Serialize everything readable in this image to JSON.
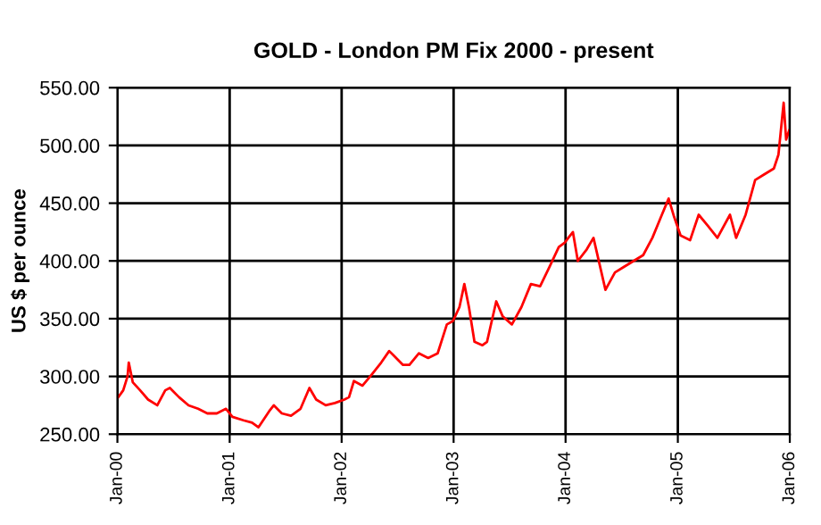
{
  "chart_data": {
    "type": "line",
    "title": "GOLD - London PM Fix 2000 - present",
    "ylabel": "US $ per ounce",
    "x": [
      "2000-01-04",
      "2000-01-20",
      "2000-02-03",
      "2000-02-07",
      "2000-02-20",
      "2000-03-15",
      "2000-04-10",
      "2000-05-10",
      "2000-06-05",
      "2000-06-20",
      "2000-07-20",
      "2000-08-20",
      "2000-09-20",
      "2000-10-20",
      "2000-11-20",
      "2000-12-20",
      "2001-01-10",
      "2001-02-15",
      "2001-03-15",
      "2001-04-05",
      "2001-05-10",
      "2001-05-25",
      "2001-06-20",
      "2001-07-20",
      "2001-08-20",
      "2001-09-18",
      "2001-10-10",
      "2001-11-10",
      "2001-12-10",
      "2002-01-10",
      "2002-01-25",
      "2002-02-10",
      "2002-03-10",
      "2002-04-10",
      "2002-05-10",
      "2002-06-05",
      "2002-06-20",
      "2002-07-20",
      "2002-08-10",
      "2002-09-10",
      "2002-10-10",
      "2002-11-10",
      "2002-12-10",
      "2002-12-30",
      "2003-01-20",
      "2003-02-05",
      "2003-02-20",
      "2003-03-10",
      "2003-04-05",
      "2003-04-20",
      "2003-05-20",
      "2003-06-10",
      "2003-07-10",
      "2003-08-10",
      "2003-09-10",
      "2003-10-10",
      "2003-11-10",
      "2003-12-10",
      "2003-12-30",
      "2004-01-10",
      "2004-01-25",
      "2004-02-10",
      "2004-03-10",
      "2004-04-01",
      "2004-05-10",
      "2004-06-10",
      "2004-07-10",
      "2004-08-10",
      "2004-09-10",
      "2004-10-10",
      "2004-11-10",
      "2004-12-02",
      "2004-12-20",
      "2005-01-10",
      "2005-02-10",
      "2005-03-10",
      "2005-04-10",
      "2005-05-10",
      "2005-06-20",
      "2005-07-10",
      "2005-08-10",
      "2005-09-10",
      "2005-10-10",
      "2005-11-10",
      "2005-11-25",
      "2005-12-12",
      "2005-12-20",
      "2005-12-30"
    ],
    "series": [
      {
        "color": "#ff0000",
        "values": [
          282,
          288,
          300,
          312,
          295,
          288,
          280,
          275,
          288,
          290,
          282,
          275,
          272,
          268,
          268,
          272,
          265,
          262,
          260,
          256,
          270,
          275,
          268,
          266,
          272,
          290,
          280,
          275,
          277,
          280,
          282,
          296,
          292,
          302,
          312,
          322,
          318,
          310,
          310,
          320,
          316,
          320,
          345,
          348,
          360,
          380,
          360,
          330,
          327,
          330,
          365,
          352,
          345,
          360,
          380,
          378,
          395,
          412,
          416,
          420,
          425,
          400,
          410,
          420,
          375,
          390,
          395,
          400,
          405,
          420,
          440,
          454,
          438,
          422,
          418,
          440,
          430,
          420,
          440,
          420,
          440,
          470,
          475,
          480,
          492,
          537,
          505,
          513
        ]
      }
    ],
    "xlim": [
      "2000-01-01",
      "2006-01-01"
    ],
    "xticks": [
      {
        "value": "2000-01-01",
        "label": "Jan-00"
      },
      {
        "value": "2001-01-01",
        "label": "Jan-01"
      },
      {
        "value": "2002-01-01",
        "label": "Jan-02"
      },
      {
        "value": "2003-01-01",
        "label": "Jan-03"
      },
      {
        "value": "2004-01-01",
        "label": "Jan-04"
      },
      {
        "value": "2005-01-01",
        "label": "Jan-05"
      },
      {
        "value": "2006-01-01",
        "label": "Jan-06"
      }
    ],
    "ylim": [
      250,
      550
    ],
    "yticks": [
      {
        "value": 250,
        "label": "250.00"
      },
      {
        "value": 300,
        "label": "300.00"
      },
      {
        "value": 350,
        "label": "350.00"
      },
      {
        "value": 400,
        "label": "400.00"
      },
      {
        "value": 450,
        "label": "450.00"
      },
      {
        "value": 500,
        "label": "500.00"
      },
      {
        "value": 550,
        "label": "550.00"
      }
    ],
    "grid": true,
    "legend": false
  }
}
